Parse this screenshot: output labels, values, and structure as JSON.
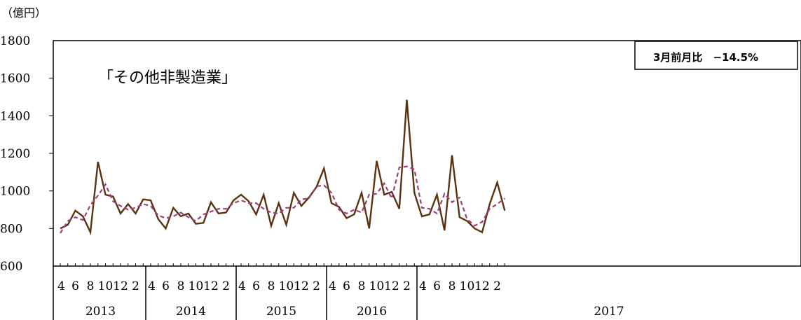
{
  "chart_data": {
    "type": "line",
    "title": "「その他非製造業」",
    "unit_label": "（億円）",
    "callout": "3月前月比　−14.5%",
    "ylim": [
      600,
      1800
    ],
    "yticks": [
      600,
      800,
      1000,
      1200,
      1400,
      1600,
      1800
    ],
    "month_tick_labels": [
      "4",
      "6",
      "8",
      "10",
      "12",
      "2"
    ],
    "years": [
      "2013",
      "2014",
      "2015",
      "2016",
      "2017"
    ],
    "x": [
      "2013-04",
      "2013-05",
      "2013-06",
      "2013-07",
      "2013-08",
      "2013-09",
      "2013-10",
      "2013-11",
      "2013-12",
      "2014-01",
      "2014-02",
      "2014-03",
      "2014-04",
      "2014-05",
      "2014-06",
      "2014-07",
      "2014-08",
      "2014-09",
      "2014-10",
      "2014-11",
      "2014-12",
      "2015-01",
      "2015-02",
      "2015-03",
      "2015-04",
      "2015-05",
      "2015-06",
      "2015-07",
      "2015-08",
      "2015-09",
      "2015-10",
      "2015-11",
      "2015-12",
      "2016-01",
      "2016-02",
      "2016-03",
      "2016-04",
      "2016-05",
      "2016-06",
      "2016-07",
      "2016-08",
      "2016-09",
      "2016-10",
      "2016-11",
      "2016-12",
      "2017-01",
      "2017-02",
      "2017-03",
      "2017-04",
      "2017-05",
      "2017-06",
      "2017-07",
      "2017-08",
      "2017-09",
      "2017-10",
      "2017-11",
      "2017-12",
      "2018-01",
      "2018-02",
      "2018-03"
    ],
    "series": [
      {
        "style": "solid",
        "color": "#5a3310",
        "values": [
          800,
          820,
          895,
          865,
          780,
          1155,
          980,
          970,
          880,
          930,
          880,
          955,
          950,
          850,
          800,
          910,
          865,
          880,
          825,
          830,
          940,
          880,
          885,
          950,
          980,
          945,
          875,
          980,
          815,
          935,
          820,
          990,
          920,
          965,
          1020,
          1120,
          935,
          915,
          855,
          875,
          990,
          800,
          1160,
          980,
          995,
          905,
          1485,
          990,
          865,
          875,
          980,
          790,
          1190,
          860,
          840,
          800,
          780,
          930,
          1045,
          895
        ]
      },
      {
        "style": "dashed",
        "color": "#a0407a",
        "values": [
          775,
          840,
          860,
          845,
          925,
          975,
          1035,
          945,
          920,
          900,
          910,
          930,
          920,
          870,
          855,
          865,
          885,
          860,
          840,
          875,
          890,
          905,
          905,
          935,
          950,
          935,
          935,
          905,
          885,
          880,
          910,
          910,
          955,
          960,
          1025,
          1030,
          990,
          900,
          880,
          900,
          885,
          980,
          985,
          1040,
          960,
          1125,
          1130,
          1115,
          910,
          905,
          880,
          985,
          940,
          965,
          850,
          815,
          835,
          905,
          930,
          960
        ]
      }
    ]
  }
}
